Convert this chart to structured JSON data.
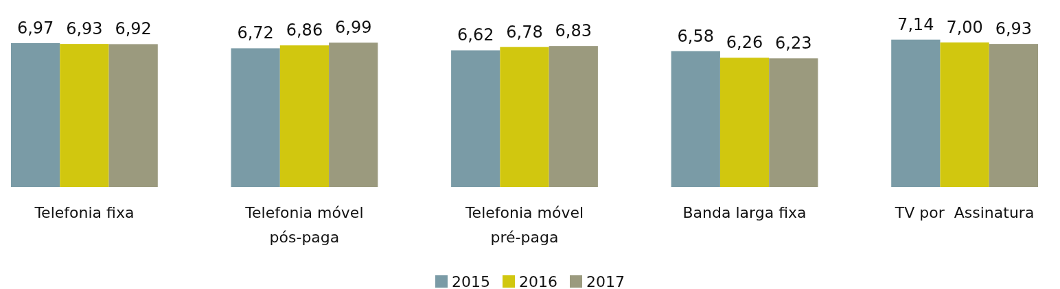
{
  "chart_data": {
    "type": "bar",
    "categories": [
      "Telefonia fixa",
      "Telefonia móvel pós-paga",
      "Telefonia móvel pré-paga",
      "Banda larga fixa",
      "TV por  Assinatura"
    ],
    "series": [
      {
        "name": "2015",
        "color": "#7a9ba6",
        "values": [
          6.97,
          6.72,
          6.62,
          6.58,
          7.14
        ],
        "value_labels": [
          "6,97",
          "6,72",
          "6,62",
          "6,58",
          "7,14"
        ]
      },
      {
        "name": "2016",
        "color": "#d1c70f",
        "values": [
          6.93,
          6.86,
          6.78,
          6.26,
          7.0
        ],
        "value_labels": [
          "6,93",
          "6,86",
          "6,78",
          "6,26",
          "7,00"
        ]
      },
      {
        "name": "2017",
        "color": "#9b9a7e",
        "values": [
          6.92,
          6.99,
          6.83,
          6.23,
          6.93
        ],
        "value_labels": [
          "6,92",
          "6,99",
          "6,83",
          "6,23",
          "6,93"
        ]
      }
    ],
    "ylim": [
      0,
      7.2
    ],
    "tick_labels": "x",
    "legend": "bottom"
  }
}
